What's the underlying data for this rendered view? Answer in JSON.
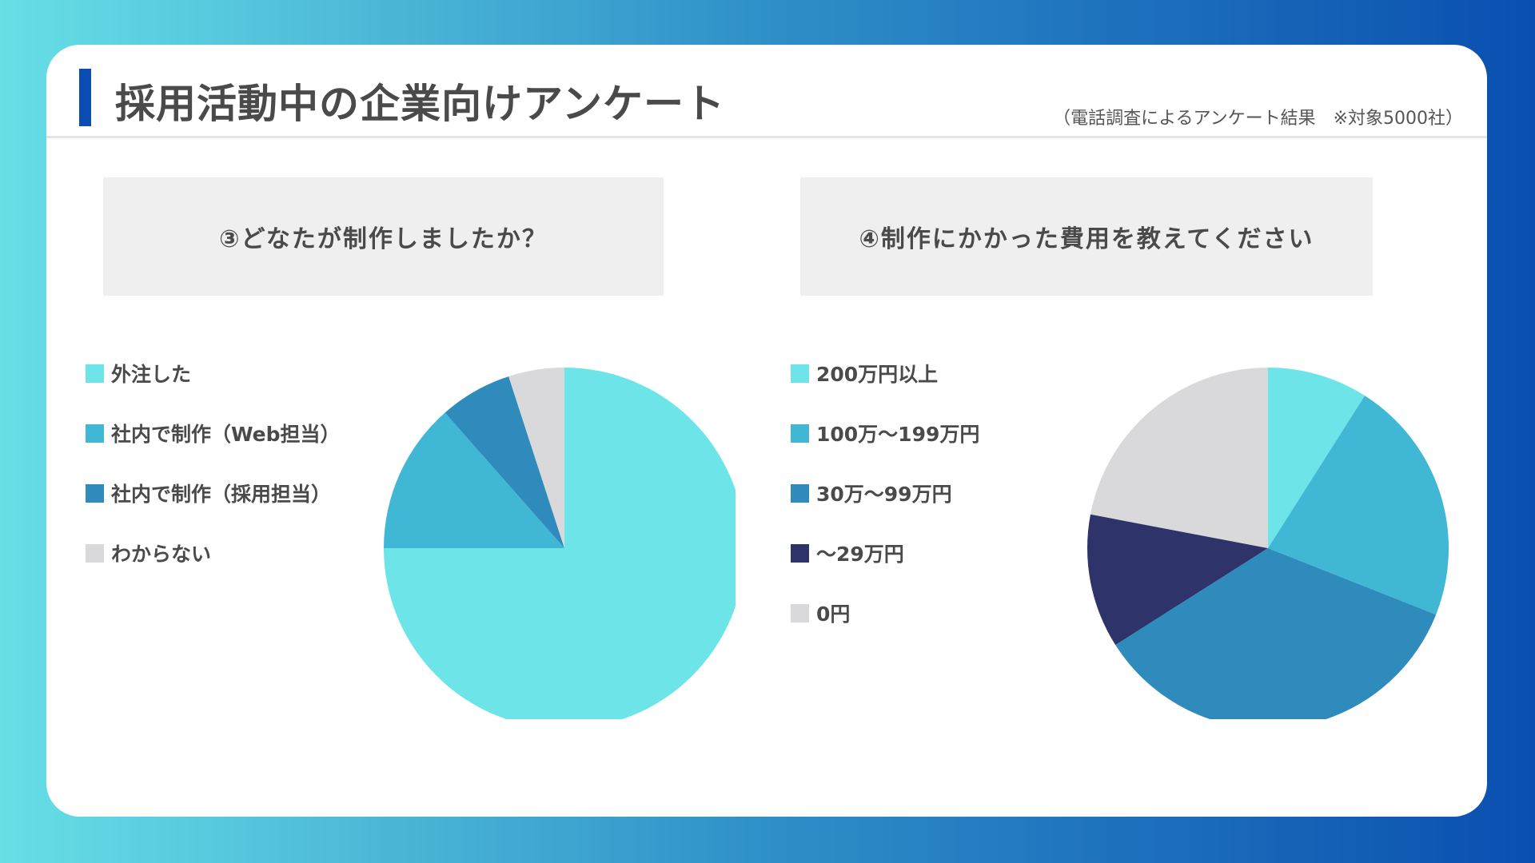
{
  "header": {
    "title": "採用活動中の企業向けアンケート",
    "subtitle": "（電話調査によるアンケート結果　※対象5000社）",
    "accent_color": "#0b4db3"
  },
  "chart_data": [
    {
      "type": "pie",
      "title": "③どなたが制作しましたか？",
      "legend_position": "left",
      "slices": [
        {
          "label": "外注した",
          "value": 75,
          "color": "#6ce4e8"
        },
        {
          "label": "社内で制作（Web担当）",
          "value": 13.5,
          "color": "#41b7d6"
        },
        {
          "label": "社内で制作（採用担当）",
          "value": 6.5,
          "color": "#2e8bbb"
        },
        {
          "label": "わからない",
          "value": 5,
          "color": "#d9d9db"
        }
      ]
    },
    {
      "type": "pie",
      "title": "④制作にかかった費用を教えてください",
      "legend_position": "left",
      "slices": [
        {
          "label": "200万円以上",
          "value": 9,
          "color": "#6ce4e8"
        },
        {
          "label": "100万～199万円",
          "value": 22,
          "color": "#41b7d6"
        },
        {
          "label": "30万～99万円",
          "value": 35,
          "color": "#2e8bbb"
        },
        {
          "label": "～29万円",
          "value": 12,
          "color": "#2e3369"
        },
        {
          "label": "0円",
          "value": 22,
          "color": "#d9d9db"
        }
      ]
    }
  ]
}
